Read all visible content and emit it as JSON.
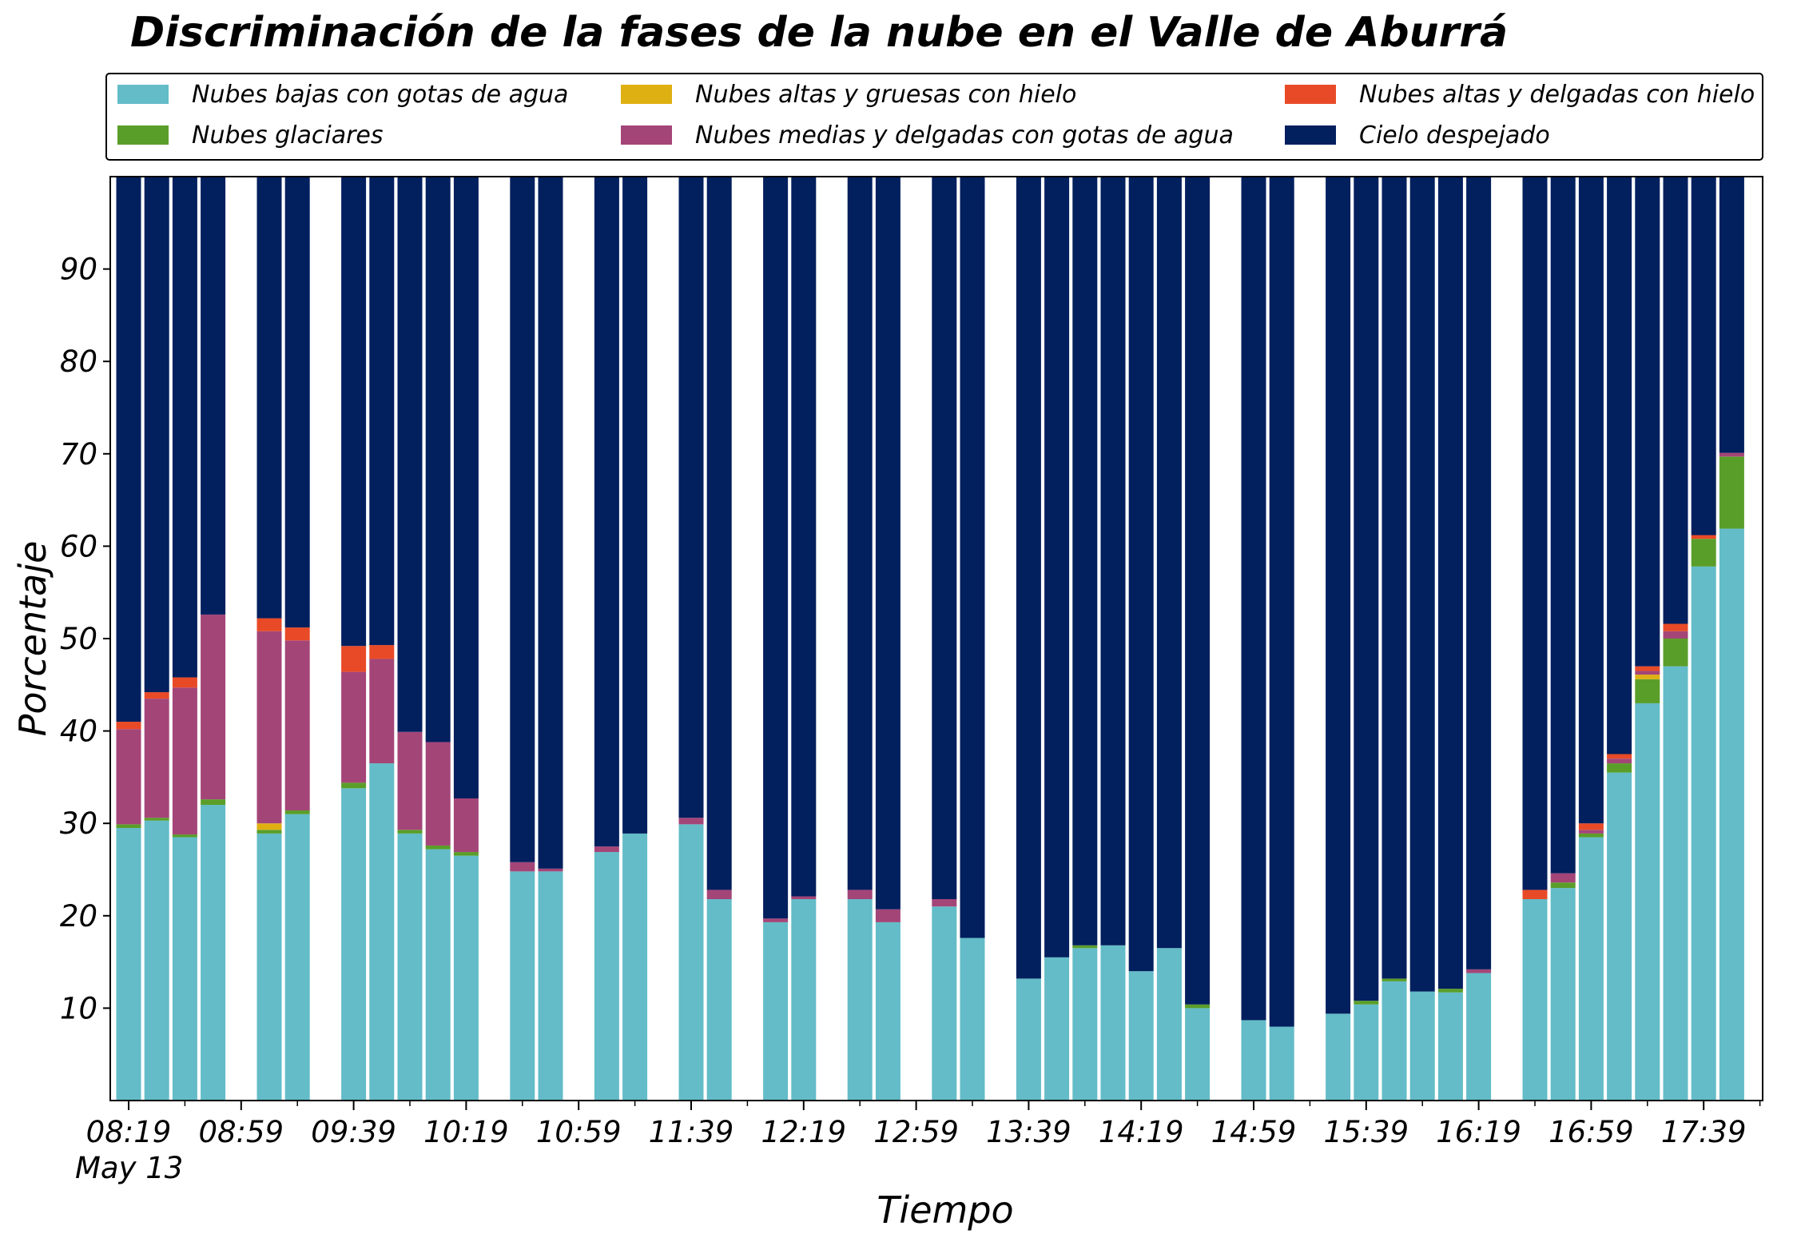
{
  "chart_data": {
    "type": "bar",
    "stacked": true,
    "title": "Discriminación de la fases de la nube en el Valle de Aburrá",
    "xlabel": "Tiempo",
    "ylabel": "Porcentaje",
    "ylim": [
      0,
      100
    ],
    "y_ticks": [
      10,
      20,
      30,
      40,
      50,
      60,
      70,
      80,
      90
    ],
    "x_range": [
      0,
      59
    ],
    "x_ticks": [
      {
        "pos": 0,
        "label": "08:19"
      },
      {
        "pos": 4,
        "label": "08:59"
      },
      {
        "pos": 8,
        "label": "09:39"
      },
      {
        "pos": 12,
        "label": "10:19"
      },
      {
        "pos": 16,
        "label": "10:59"
      },
      {
        "pos": 20,
        "label": "11:39"
      },
      {
        "pos": 24,
        "label": "12:19"
      },
      {
        "pos": 28,
        "label": "12:59"
      },
      {
        "pos": 32,
        "label": "13:39"
      },
      {
        "pos": 36,
        "label": "14:19"
      },
      {
        "pos": 40,
        "label": "14:59"
      },
      {
        "pos": 44,
        "label": "15:39"
      },
      {
        "pos": 48,
        "label": "16:19"
      },
      {
        "pos": 52,
        "label": "16:59"
      },
      {
        "pos": 56,
        "label": "17:39"
      }
    ],
    "x_minor_ticks": [
      2,
      6,
      10,
      14,
      18,
      22,
      26,
      30,
      34,
      38,
      42,
      46,
      50,
      54,
      58
    ],
    "date_label": "May 13",
    "grid": false,
    "legend_position": "top",
    "series": [
      {
        "name": "Nubes bajas con gotas de agua",
        "color": "#63bcc8"
      },
      {
        "name": "Nubes glaciares",
        "color": "#5a9e2a"
      },
      {
        "name": "Nubes altas y gruesas con hielo",
        "color": "#dfb012"
      },
      {
        "name": "Nubes medias y delgadas con gotas de agua",
        "color": "#a44578"
      },
      {
        "name": "Nubes altas y delgadas con hielo",
        "color": "#e84a27"
      },
      {
        "name": "Cielo despejado",
        "color": "#021f5e"
      }
    ],
    "legend_order": [
      0,
      2,
      4,
      1,
      3,
      5
    ],
    "bars": [
      {
        "x": 0,
        "values": [
          29.5,
          0.4,
          0,
          10.3,
          0.8,
          59.0
        ]
      },
      {
        "x": 1,
        "values": [
          30.3,
          0.3,
          0,
          12.9,
          0.7,
          55.8
        ]
      },
      {
        "x": 2,
        "values": [
          28.5,
          0.3,
          0,
          15.9,
          1.1,
          54.2
        ]
      },
      {
        "x": 3,
        "values": [
          32.0,
          0.6,
          0,
          20.0,
          0,
          47.4
        ]
      },
      {
        "x": 5,
        "values": [
          28.9,
          0.4,
          0.7,
          20.8,
          1.4,
          47.8
        ]
      },
      {
        "x": 6,
        "values": [
          31.0,
          0.4,
          0,
          18.4,
          1.4,
          48.8
        ]
      },
      {
        "x": 8,
        "values": [
          33.8,
          0.6,
          0,
          12.0,
          2.8,
          50.8
        ]
      },
      {
        "x": 9,
        "values": [
          36.5,
          0,
          0,
          11.3,
          1.5,
          50.7
        ]
      },
      {
        "x": 10,
        "values": [
          28.9,
          0.4,
          0,
          10.6,
          0,
          60.1
        ]
      },
      {
        "x": 11,
        "values": [
          27.2,
          0.4,
          0,
          11.2,
          0,
          61.2
        ]
      },
      {
        "x": 12,
        "values": [
          26.5,
          0.4,
          0,
          5.8,
          0,
          67.3
        ]
      },
      {
        "x": 14,
        "values": [
          24.8,
          0,
          0,
          1.0,
          0,
          74.2
        ]
      },
      {
        "x": 15,
        "values": [
          24.8,
          0,
          0,
          0.3,
          0,
          74.9
        ]
      },
      {
        "x": 17,
        "values": [
          26.9,
          0,
          0,
          0.6,
          0,
          72.5
        ]
      },
      {
        "x": 18,
        "values": [
          28.9,
          0,
          0,
          0,
          0,
          71.1
        ]
      },
      {
        "x": 20,
        "values": [
          29.9,
          0,
          0,
          0.7,
          0,
          69.4
        ]
      },
      {
        "x": 21,
        "values": [
          21.8,
          0,
          0,
          1.0,
          0,
          77.2
        ]
      },
      {
        "x": 23,
        "values": [
          19.3,
          0,
          0,
          0.4,
          0,
          80.3
        ]
      },
      {
        "x": 24,
        "values": [
          21.8,
          0,
          0,
          0.3,
          0,
          77.9
        ]
      },
      {
        "x": 26,
        "values": [
          21.8,
          0,
          0,
          1.0,
          0,
          77.2
        ]
      },
      {
        "x": 27,
        "values": [
          19.3,
          0,
          0,
          1.4,
          0,
          79.3
        ]
      },
      {
        "x": 29,
        "values": [
          21.0,
          0,
          0,
          0.8,
          0,
          78.2
        ]
      },
      {
        "x": 30,
        "values": [
          17.6,
          0,
          0,
          0,
          0,
          82.4
        ]
      },
      {
        "x": 32,
        "values": [
          13.2,
          0,
          0,
          0,
          0,
          86.8
        ]
      },
      {
        "x": 33,
        "values": [
          15.5,
          0,
          0,
          0,
          0,
          84.5
        ]
      },
      {
        "x": 34,
        "values": [
          16.5,
          0.3,
          0,
          0,
          0,
          83.2
        ]
      },
      {
        "x": 35,
        "values": [
          16.8,
          0,
          0,
          0,
          0,
          83.2
        ]
      },
      {
        "x": 36,
        "values": [
          14.0,
          0,
          0,
          0,
          0,
          86.0
        ]
      },
      {
        "x": 37,
        "values": [
          16.5,
          0,
          0,
          0,
          0,
          83.5
        ]
      },
      {
        "x": 38,
        "values": [
          10.0,
          0.4,
          0,
          0,
          0,
          89.6
        ]
      },
      {
        "x": 40,
        "values": [
          8.7,
          0,
          0,
          0,
          0,
          91.3
        ]
      },
      {
        "x": 41,
        "values": [
          8.0,
          0,
          0,
          0,
          0,
          92.0
        ]
      },
      {
        "x": 43,
        "values": [
          9.4,
          0,
          0,
          0,
          0,
          90.6
        ]
      },
      {
        "x": 44,
        "values": [
          10.4,
          0.4,
          0,
          0,
          0,
          89.2
        ]
      },
      {
        "x": 45,
        "values": [
          12.9,
          0.3,
          0,
          0,
          0,
          86.8
        ]
      },
      {
        "x": 46,
        "values": [
          11.8,
          0,
          0,
          0,
          0,
          88.2
        ]
      },
      {
        "x": 47,
        "values": [
          11.7,
          0.4,
          0,
          0,
          0,
          87.9
        ]
      },
      {
        "x": 48,
        "values": [
          13.8,
          0,
          0,
          0.4,
          0,
          85.8
        ]
      },
      {
        "x": 50,
        "values": [
          21.8,
          0,
          0,
          0,
          1.0,
          77.2
        ]
      },
      {
        "x": 51,
        "values": [
          23.0,
          0.6,
          0,
          1.0,
          0,
          75.4
        ]
      },
      {
        "x": 52,
        "values": [
          28.5,
          0.4,
          0,
          0.4,
          0.7,
          70.0
        ]
      },
      {
        "x": 53,
        "values": [
          35.5,
          1.0,
          0,
          0.5,
          0.5,
          62.5
        ]
      },
      {
        "x": 54,
        "values": [
          43.0,
          2.6,
          0.5,
          0.4,
          0.5,
          53.0
        ]
      },
      {
        "x": 55,
        "values": [
          47.0,
          3.0,
          0,
          0.8,
          0.8,
          48.4
        ]
      },
      {
        "x": 56,
        "values": [
          57.8,
          3.0,
          0,
          0,
          0.4,
          38.8
        ]
      },
      {
        "x": 57,
        "values": [
          61.9,
          7.8,
          0,
          0.4,
          0,
          29.9
        ]
      }
    ]
  }
}
